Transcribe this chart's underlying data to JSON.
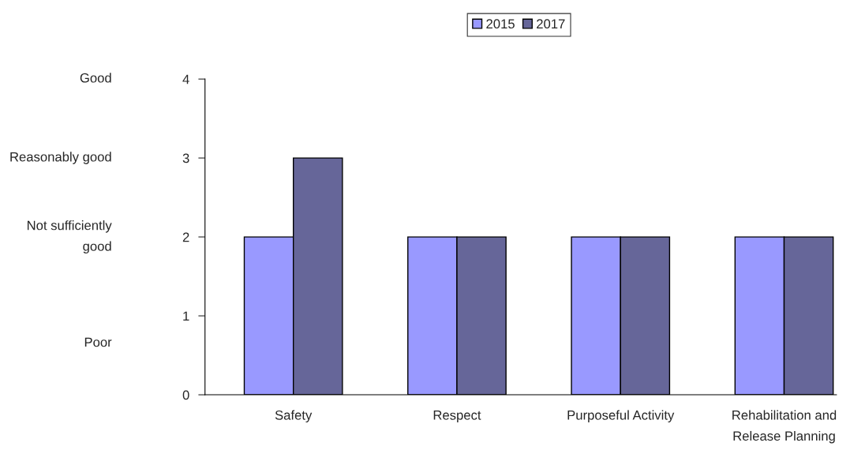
{
  "chart_data": {
    "type": "bar",
    "categories": [
      "Safety",
      "Respect",
      "Purposeful Activity",
      "Rehabilitation and\nRelease Planning"
    ],
    "series": [
      {
        "name": "2015",
        "color": "#9999ff",
        "values": [
          2,
          2,
          2,
          2
        ]
      },
      {
        "name": "2017",
        "color": "#666699",
        "values": [
          3,
          2,
          2,
          2
        ]
      }
    ],
    "ylim": [
      0,
      4
    ],
    "yticks": [
      0,
      1,
      2,
      3,
      4
    ],
    "annotations": [
      "Good",
      "Reasonably good",
      "Not sufficiently\ngood",
      "Poor"
    ],
    "legend": "top",
    "grid": false
  }
}
